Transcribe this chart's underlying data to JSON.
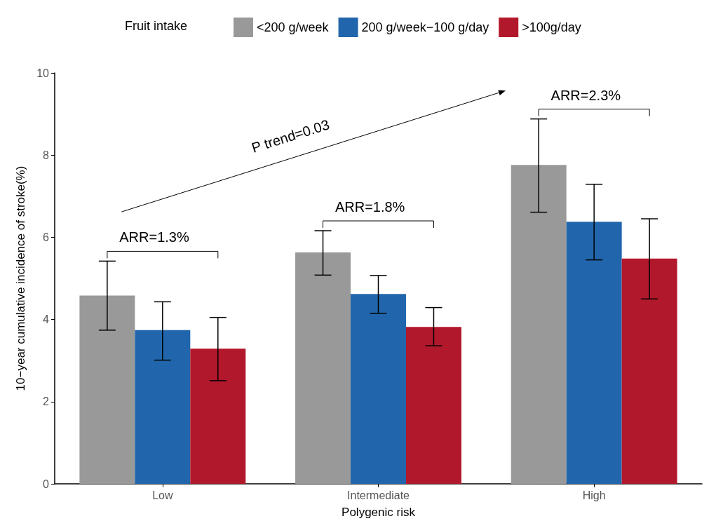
{
  "chart_data": {
    "type": "bar",
    "xlabel": "Polygenic risk",
    "ylabel": "10−year cumulative incidence of stroke(%)",
    "legend_title": "Fruit intake",
    "legend": "top",
    "categories": [
      "Low",
      "Intermediate",
      "High"
    ],
    "series": [
      {
        "name": "<200 g/week",
        "color": "#999999",
        "values": [
          4.58,
          5.63,
          7.76
        ],
        "errors": [
          [
            3.74,
            5.42
          ],
          [
            5.08,
            6.16
          ],
          [
            6.61,
            8.88
          ]
        ]
      },
      {
        "name": "200 g/week−100 g/day",
        "color": "#2166ac",
        "values": [
          3.74,
          4.62,
          6.38
        ],
        "errors": [
          [
            3.01,
            4.43
          ],
          [
            4.15,
            5.07
          ],
          [
            5.45,
            7.29
          ]
        ]
      },
      {
        "name": ">100g/day",
        "color": "#b2182b",
        "values": [
          3.29,
          3.82,
          5.48
        ],
        "errors": [
          [
            2.51,
            4.05
          ],
          [
            3.36,
            4.29
          ],
          [
            4.5,
            6.45
          ]
        ]
      }
    ],
    "annotations": [
      "ARR=1.3%",
      "ARR=1.8%",
      "ARR=2.3%",
      "P trend=0.03"
    ],
    "ylim": [
      0,
      10
    ],
    "yticks": [
      0,
      2,
      4,
      6,
      8,
      10
    ],
    "grid": false
  }
}
